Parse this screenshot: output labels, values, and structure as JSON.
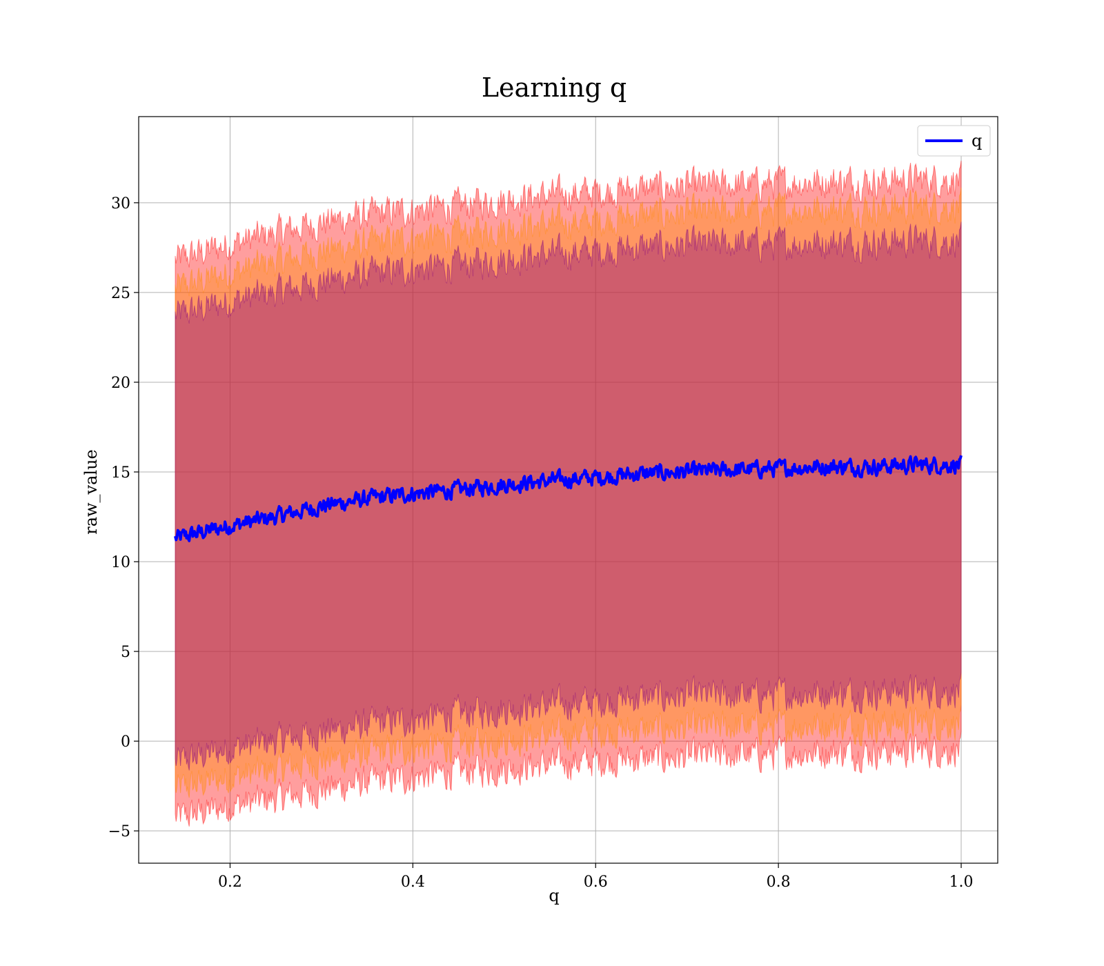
{
  "chart_data": {
    "type": "area",
    "title": "Learning q",
    "xlabel": "q",
    "ylabel": "raw_value",
    "xlim": [
      0.1,
      1.04
    ],
    "ylim": [
      -6.8,
      34.8
    ],
    "xticks": [
      0.2,
      0.4,
      0.6,
      0.8,
      1.0
    ],
    "xtick_labels": [
      "0.2",
      "0.4",
      "0.6",
      "0.8",
      "1.0"
    ],
    "yticks": [
      -5,
      0,
      5,
      10,
      15,
      20,
      25,
      30
    ],
    "ytick_labels": [
      "−5",
      "0",
      "5",
      "10",
      "15",
      "20",
      "25",
      "30"
    ],
    "grid": true,
    "legend": {
      "placement": "top-right",
      "entries": [
        "q"
      ]
    },
    "x_range": [
      0.14,
      1.0
    ],
    "series": [
      {
        "name": "q",
        "kind": "line",
        "color": "#0000ff",
        "x": [
          0.14,
          0.2,
          0.25,
          0.3,
          0.35,
          0.4,
          0.45,
          0.5,
          0.55,
          0.6,
          0.65,
          0.7,
          0.75,
          0.8,
          0.85,
          0.9,
          0.95,
          1.0
        ],
        "y": [
          11.3,
          12.0,
          12.5,
          13.1,
          13.5,
          13.8,
          14.0,
          14.3,
          14.5,
          14.7,
          14.9,
          15.0,
          15.1,
          15.2,
          15.3,
          15.3,
          15.4,
          15.4
        ]
      }
    ],
    "bands": [
      {
        "description": "mean ± 1 std",
        "color": "#800080",
        "x": [
          0.14,
          0.2,
          0.25,
          0.3,
          0.35,
          0.4,
          0.45,
          0.5,
          0.55,
          0.6,
          0.65,
          0.7,
          0.75,
          0.8,
          0.85,
          0.9,
          0.95,
          1.0
        ],
        "upper": [
          23.7,
          24.5,
          25.0,
          25.6,
          26.0,
          26.3,
          26.5,
          26.9,
          27.1,
          27.3,
          27.5,
          27.6,
          27.7,
          27.7,
          27.8,
          27.8,
          27.9,
          27.9
        ],
        "lower": [
          -1.2,
          -0.4,
          0.0,
          0.5,
          0.9,
          1.2,
          1.5,
          1.8,
          2.0,
          2.2,
          2.4,
          2.5,
          2.5,
          2.6,
          2.7,
          2.7,
          2.8,
          2.8
        ]
      },
      {
        "description": "mean ± 1.25 std",
        "color": "#ff8c00",
        "x": [
          0.14,
          0.2,
          0.25,
          0.3,
          0.35,
          0.4,
          0.45,
          0.5,
          0.55,
          0.6,
          0.65,
          0.7,
          0.75,
          0.8,
          0.85,
          0.9,
          0.95,
          1.0
        ],
        "upper": [
          25.2,
          26.1,
          26.7,
          27.3,
          27.7,
          28.0,
          28.2,
          28.6,
          28.8,
          29.0,
          29.3,
          29.4,
          29.5,
          29.6,
          29.7,
          29.7,
          29.8,
          29.8
        ],
        "lower": [
          -2.7,
          -2.0,
          -1.6,
          -1.1,
          -0.7,
          -0.4,
          -0.2,
          0.1,
          0.3,
          0.5,
          0.6,
          0.7,
          0.8,
          0.8,
          0.9,
          0.9,
          1.0,
          1.0
        ]
      },
      {
        "description": "mean ± 1.5 std",
        "color": "#ff0000",
        "x": [
          0.14,
          0.2,
          0.25,
          0.3,
          0.35,
          0.4,
          0.45,
          0.5,
          0.55,
          0.6,
          0.65,
          0.7,
          0.75,
          0.8,
          0.85,
          0.9,
          0.95,
          1.0
        ],
        "upper": [
          26.8,
          27.7,
          28.3,
          28.9,
          29.3,
          29.6,
          29.8,
          30.2,
          30.4,
          30.6,
          30.8,
          30.9,
          31.0,
          31.1,
          31.2,
          31.2,
          31.3,
          31.3
        ],
        "lower": [
          -4.3,
          -3.6,
          -3.2,
          -2.7,
          -2.3,
          -2.0,
          -1.7,
          -1.5,
          -1.3,
          -1.1,
          -1.0,
          -0.9,
          -0.8,
          -0.7,
          -0.6,
          -0.6,
          -0.5,
          -0.5
        ]
      }
    ]
  }
}
